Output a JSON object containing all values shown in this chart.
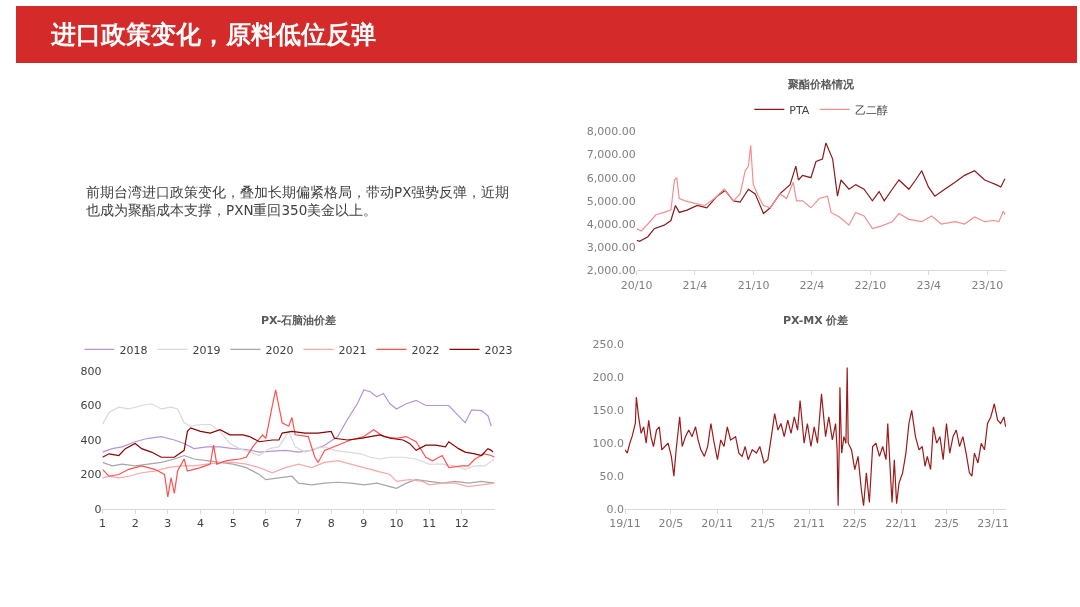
{
  "chart_data": [
    {
      "type": "other",
      "title": "进口政策变化，原料低位反弹",
      "annotations": [
        "前期台湾进口政策变化，叠加长期偏紧格局，带动PX强势反弹，近期也成为聚酯成本支撑，PXN重回350美金以上。"
      ]
    },
    {
      "type": "line",
      "title": "聚酯价格情况",
      "legend": "top",
      "grid": false,
      "xlim": [
        "2020-10-01",
        "2023-11-28"
      ],
      "xticks": [
        {
          "value": "2020-10-01",
          "label": "20/10"
        },
        {
          "value": "2021-04-01",
          "label": "21/4"
        },
        {
          "value": "2021-10-01",
          "label": "21/10"
        },
        {
          "value": "2022-04-01",
          "label": "22/4"
        },
        {
          "value": "2022-10-01",
          "label": "22/10"
        },
        {
          "value": "2023-04-01",
          "label": "23/4"
        },
        {
          "value": "2023-10-01",
          "label": "23/10"
        }
      ],
      "ylim": [
        2000,
        8000
      ],
      "yticks": [
        {
          "value": 2000,
          "label": "2,000.00"
        },
        {
          "value": 3000,
          "label": "3,000.00"
        },
        {
          "value": 4000,
          "label": "4,000.00"
        },
        {
          "value": 5000,
          "label": "5,000.00"
        },
        {
          "value": 6000,
          "label": "6,000.00"
        },
        {
          "value": 7000,
          "label": "7,000.00"
        },
        {
          "value": 8000,
          "label": "8,000.00"
        }
      ],
      "series": [
        {
          "name": "PTA",
          "color": "#8b1a1a",
          "x": [
            "2020-10-01",
            "2020-10-10",
            "2020-11-05",
            "2020-11-25",
            "2020-12-26",
            "2021-01-16",
            "2021-01-30",
            "2021-02-11",
            "2021-03-07",
            "2021-04-08",
            "2021-05-08",
            "2021-06-09",
            "2021-07-04",
            "2021-07-30",
            "2021-08-20",
            "2021-09-15",
            "2021-10-06",
            "2021-11-01",
            "2021-11-22",
            "2021-12-22",
            "2022-01-23",
            "2022-02-10",
            "2022-02-18",
            "2022-03-03",
            "2022-03-29",
            "2022-04-14",
            "2022-05-04",
            "2022-05-15",
            "2022-06-05",
            "2022-06-20",
            "2022-07-01",
            "2022-07-26",
            "2022-08-16",
            "2022-09-11",
            "2022-10-07",
            "2022-10-28",
            "2022-11-13",
            "2022-12-08",
            "2022-12-29",
            "2023-01-29",
            "2023-02-19",
            "2023-03-10",
            "2023-03-31",
            "2023-04-20",
            "2023-05-21",
            "2023-06-22",
            "2023-07-22",
            "2023-08-22",
            "2023-09-23",
            "2023-10-10",
            "2023-10-28",
            "2023-11-12",
            "2023-11-25"
          ],
          "values": [
            3300,
            3250,
            3450,
            3800,
            3950,
            4150,
            4800,
            4500,
            4600,
            4800,
            4700,
            5200,
            5450,
            5000,
            4950,
            5500,
            5300,
            4450,
            4700,
            5300,
            5700,
            6500,
            5900,
            6100,
            6000,
            6700,
            6800,
            7500,
            6800,
            5200,
            5900,
            5500,
            5700,
            5500,
            5000,
            5400,
            5000,
            5500,
            5900,
            5500,
            5900,
            6300,
            5600,
            5200,
            5500,
            5800,
            6100,
            6300,
            5900,
            5800,
            5700,
            5600,
            5950
          ]
        },
        {
          "name": "乙二醇",
          "color": "#f28e8e",
          "x": [
            "2020-10-01",
            "2020-10-15",
            "2020-11-05",
            "2020-11-30",
            "2020-12-26",
            "2021-01-16",
            "2021-01-27",
            "2021-02-03",
            "2021-02-11",
            "2021-03-02",
            "2021-03-28",
            "2021-05-01",
            "2021-06-01",
            "2021-07-01",
            "2021-07-30",
            "2021-08-20",
            "2021-09-05",
            "2021-09-15",
            "2021-09-22",
            "2021-09-30",
            "2021-10-16",
            "2021-11-01",
            "2021-11-22",
            "2021-12-22",
            "2022-01-12",
            "2022-02-02",
            "2022-02-12",
            "2022-03-03",
            "2022-03-29",
            "2022-04-24",
            "2022-05-20",
            "2022-05-31",
            "2022-06-26",
            "2022-07-26",
            "2022-08-16",
            "2022-09-11",
            "2022-10-07",
            "2022-11-01",
            "2022-12-08",
            "2022-12-29",
            "2023-01-29",
            "2023-03-10",
            "2023-04-10",
            "2023-05-10",
            "2023-06-22",
            "2023-07-22",
            "2023-08-22",
            "2023-09-23",
            "2023-10-20",
            "2023-11-06",
            "2023-11-20",
            "2023-11-26"
          ],
          "values": [
            3800,
            3700,
            4000,
            4400,
            4500,
            4600,
            5900,
            6000,
            5100,
            5000,
            4900,
            4800,
            5100,
            5500,
            5000,
            5300,
            6300,
            6500,
            7400,
            5700,
            5200,
            4800,
            4700,
            5300,
            5100,
            5800,
            5000,
            5000,
            4700,
            5100,
            5200,
            4500,
            4300,
            3950,
            4500,
            4350,
            3800,
            3900,
            4100,
            4450,
            4200,
            4100,
            4350,
            4000,
            4100,
            4000,
            4300,
            4100,
            4150,
            4100,
            4550,
            4400
          ]
        }
      ]
    },
    {
      "type": "line",
      "title": "PX-石脑油价差",
      "legend": "top",
      "grid": false,
      "xlim": [
        1,
        13
      ],
      "xticks": [
        1,
        2,
        3,
        4,
        5,
        6,
        7,
        8,
        9,
        10,
        11,
        12
      ],
      "ylim": [
        0,
        800
      ],
      "yticks": [
        0,
        200,
        400,
        600,
        800
      ],
      "series": [
        {
          "name": "2018",
          "color": "#b594d8",
          "x": [
            1.0,
            1.3,
            1.6,
            2.0,
            2.4,
            2.8,
            3.2,
            3.5,
            3.8,
            4.2,
            4.6,
            5.0,
            5.4,
            5.8,
            6.2,
            6.6,
            7.0,
            7.4,
            7.8,
            8.2,
            8.5,
            8.8,
            9.0,
            9.2,
            9.4,
            9.6,
            9.8,
            10.0,
            10.3,
            10.6,
            10.9,
            11.2,
            11.6,
            11.9,
            12.1,
            12.3,
            12.6,
            12.8,
            12.9
          ],
          "values": [
            330,
            350,
            360,
            390,
            410,
            420,
            400,
            380,
            350,
            360,
            360,
            350,
            345,
            330,
            335,
            340,
            330,
            340,
            370,
            420,
            520,
            610,
            690,
            680,
            650,
            670,
            610,
            580,
            610,
            630,
            600,
            600,
            600,
            540,
            500,
            575,
            570,
            540,
            480
          ]
        },
        {
          "name": "2019",
          "color": "#d9d9d9",
          "x": [
            1.0,
            1.2,
            1.5,
            1.8,
            2.2,
            2.5,
            2.8,
            3.1,
            3.3,
            3.5,
            3.7,
            4.0,
            4.3,
            4.6,
            4.9,
            5.2,
            5.5,
            5.8,
            6.1,
            6.4,
            6.7,
            6.9,
            7.2,
            7.5,
            7.8,
            8.1,
            8.5,
            8.9,
            9.2,
            9.5,
            9.8,
            10.2,
            10.6,
            11.0,
            11.4,
            11.8,
            12.1,
            12.4,
            12.7,
            13.0
          ],
          "values": [
            490,
            560,
            590,
            580,
            600,
            610,
            580,
            590,
            580,
            500,
            480,
            490,
            490,
            450,
            380,
            350,
            330,
            310,
            350,
            360,
            450,
            360,
            330,
            350,
            360,
            340,
            330,
            320,
            300,
            290,
            300,
            300,
            290,
            260,
            260,
            250,
            230,
            250,
            250,
            290
          ]
        },
        {
          "name": "2020",
          "color": "#a6a6a6",
          "x": [
            1.0,
            1.3,
            1.6,
            2.0,
            2.4,
            2.8,
            3.2,
            3.5,
            3.8,
            4.2,
            4.6,
            5.0,
            5.4,
            5.8,
            6.0,
            6.4,
            6.8,
            7.0,
            7.4,
            7.8,
            8.2,
            8.6,
            9.0,
            9.4,
            9.8,
            10.0,
            10.3,
            10.6,
            11.0,
            11.4,
            11.8,
            12.2,
            12.6,
            13.0
          ],
          "values": [
            270,
            250,
            260,
            250,
            260,
            270,
            290,
            310,
            290,
            280,
            270,
            260,
            240,
            200,
            170,
            180,
            190,
            150,
            140,
            150,
            155,
            150,
            140,
            150,
            130,
            120,
            150,
            170,
            160,
            150,
            160,
            150,
            160,
            150
          ]
        },
        {
          "name": "2021",
          "color": "#f7a8a8",
          "x": [
            1.0,
            1.2,
            1.5,
            1.8,
            2.2,
            2.6,
            3.0,
            3.4,
            3.8,
            4.2,
            4.6,
            5.0,
            5.4,
            5.8,
            6.2,
            6.6,
            7.0,
            7.4,
            7.8,
            8.2,
            8.6,
            9.0,
            9.4,
            9.8,
            10.0,
            10.4,
            10.8,
            11.0,
            11.4,
            11.8,
            12.2,
            12.6,
            13.0
          ],
          "values": [
            180,
            190,
            180,
            190,
            210,
            220,
            240,
            250,
            250,
            260,
            270,
            270,
            260,
            240,
            210,
            240,
            260,
            240,
            270,
            280,
            260,
            240,
            220,
            200,
            160,
            170,
            160,
            140,
            150,
            150,
            130,
            140,
            150
          ]
        },
        {
          "name": "2022",
          "color": "#ff5050",
          "x": [
            1.0,
            1.2,
            1.5,
            1.8,
            2.2,
            2.6,
            2.9,
            3.0,
            3.1,
            3.2,
            3.3,
            3.5,
            3.6,
            4.0,
            4.3,
            4.4,
            4.5,
            4.8,
            5.2,
            5.4,
            5.6,
            5.9,
            6.0,
            6.2,
            6.3,
            6.5,
            6.7,
            6.8,
            6.9,
            7.3,
            7.5,
            7.6,
            7.8,
            8.2,
            8.6,
            9.0,
            9.3,
            9.6,
            10.0,
            10.3,
            10.6,
            10.9,
            11.1,
            11.4,
            11.6,
            12.0,
            12.2,
            12.4,
            12.7,
            12.9,
            13.0
          ],
          "values": [
            230,
            190,
            200,
            230,
            250,
            230,
            200,
            70,
            180,
            90,
            220,
            290,
            220,
            240,
            260,
            370,
            260,
            280,
            290,
            300,
            360,
            430,
            410,
            600,
            690,
            500,
            480,
            530,
            430,
            420,
            300,
            270,
            340,
            370,
            400,
            420,
            460,
            420,
            410,
            420,
            390,
            300,
            280,
            310,
            240,
            250,
            250,
            290,
            320,
            310,
            300
          ]
        },
        {
          "name": "2023",
          "color": "#8b0000",
          "x": [
            1.0,
            1.2,
            1.5,
            1.7,
            2.0,
            2.2,
            2.5,
            2.8,
            3.2,
            3.5,
            3.6,
            3.7,
            4.0,
            4.3,
            4.6,
            4.9,
            5.3,
            5.5,
            5.8,
            6.2,
            6.4,
            6.5,
            6.8,
            7.2,
            7.6,
            8.0,
            8.1,
            8.5,
            8.9,
            9.2,
            9.5,
            9.8,
            10.2,
            10.4,
            10.6,
            10.9,
            11.2,
            11.5,
            11.6,
            11.9,
            12.1,
            12.4,
            12.6,
            12.8,
            12.9,
            12.95
          ],
          "values": [
            300,
            320,
            310,
            350,
            380,
            350,
            330,
            300,
            300,
            340,
            450,
            470,
            450,
            440,
            460,
            430,
            430,
            420,
            390,
            400,
            400,
            440,
            450,
            440,
            440,
            450,
            410,
            400,
            410,
            420,
            430,
            410,
            400,
            380,
            340,
            370,
            370,
            360,
            390,
            350,
            330,
            320,
            310,
            350,
            340,
            330
          ]
        }
      ]
    },
    {
      "type": "line",
      "title": "PX-MX 价差",
      "grid": false,
      "xlim": [
        "2019-11-01",
        "2023-12-22"
      ],
      "xticks": [
        {
          "value": "2019-11-01",
          "label": "19/11"
        },
        {
          "value": "2020-05-01",
          "label": "20/5"
        },
        {
          "value": "2020-11-01",
          "label": "20/11"
        },
        {
          "value": "2021-05-01",
          "label": "21/5"
        },
        {
          "value": "2021-11-01",
          "label": "21/11"
        },
        {
          "value": "2022-05-01",
          "label": "22/5"
        },
        {
          "value": "2022-11-01",
          "label": "22/11"
        },
        {
          "value": "2023-05-01",
          "label": "23/5"
        },
        {
          "value": "2023-11-01",
          "label": "23/11"
        }
      ],
      "ylim": [
        0,
        250
      ],
      "yticks": [
        {
          "value": 0,
          "label": "0.0"
        },
        {
          "value": 50,
          "label": "50.0"
        },
        {
          "value": 100,
          "label": "100.0"
        },
        {
          "value": 150,
          "label": "150.0"
        },
        {
          "value": 200,
          "label": "200.0"
        },
        {
          "value": 250,
          "label": "250.0"
        }
      ],
      "series": [
        {
          "color": "#9b1b1b",
          "x": [
            "2019-11-01",
            "2019-11-10",
            "2019-11-20",
            "2019-11-29",
            "2019-12-12",
            "2019-12-16",
            "2019-12-25",
            "2020-01-04",
            "2020-01-14",
            "2020-01-24",
            "2020-02-03",
            "2020-02-12",
            "2020-02-22",
            "2020-03-05",
            "2020-03-16",
            "2020-03-26",
            "2020-04-07",
            "2020-04-20",
            "2020-05-03",
            "2020-05-13",
            "2020-05-22",
            "2020-06-05",
            "2020-06-15",
            "2020-06-28",
            "2020-07-11",
            "2020-07-24",
            "2020-08-07",
            "2020-08-17",
            "2020-08-28",
            "2020-09-11",
            "2020-09-24",
            "2020-10-07",
            "2020-10-20",
            "2020-11-02",
            "2020-11-15",
            "2020-11-28",
            "2020-12-11",
            "2020-12-24",
            "2021-01-13",
            "2021-01-26",
            "2021-02-08",
            "2021-02-20",
            "2021-03-04",
            "2021-03-20",
            "2021-04-06",
            "2021-04-19",
            "2021-05-06",
            "2021-05-21",
            "2021-06-04",
            "2021-06-17",
            "2021-06-30",
            "2021-07-12",
            "2021-07-25",
            "2021-08-08",
            "2021-08-21",
            "2021-09-03",
            "2021-09-16",
            "2021-09-26",
            "2021-10-12",
            "2021-10-25",
            "2021-11-08",
            "2021-11-21",
            "2021-12-04",
            "2021-12-20",
            "2022-01-05",
            "2022-01-18",
            "2022-02-01",
            "2022-02-14",
            "2022-02-20",
            "2022-02-24",
            "2022-03-01",
            "2022-03-03",
            "2022-03-10",
            "2022-03-19",
            "2022-03-27",
            "2022-04-01",
            "2022-04-05",
            "2022-04-18",
            "2022-05-01",
            "2022-05-14",
            "2022-05-27",
            "2022-06-05",
            "2022-06-16",
            "2022-06-28",
            "2022-07-11",
            "2022-07-24",
            "2022-08-07",
            "2022-08-20",
            "2022-09-02",
            "2022-09-09",
            "2022-09-20",
            "2022-09-26",
            "2022-10-05",
            "2022-10-14",
            "2022-10-24",
            "2022-11-07",
            "2022-11-20",
            "2022-12-02",
            "2022-12-13",
            "2022-12-28",
            "2023-01-11",
            "2023-01-24",
            "2023-02-04",
            "2023-02-13",
            "2023-02-26",
            "2023-03-09",
            "2023-03-22",
            "2023-04-04",
            "2023-04-17",
            "2023-04-30",
            "2023-05-13",
            "2023-05-26",
            "2023-06-08",
            "2023-06-21",
            "2023-07-04",
            "2023-07-17",
            "2023-07-30",
            "2023-08-09",
            "2023-08-19",
            "2023-09-02",
            "2023-09-15",
            "2023-09-28",
            "2023-10-10",
            "2023-10-23",
            "2023-11-06",
            "2023-11-19",
            "2023-12-01",
            "2023-12-14",
            "2023-12-21"
          ],
          "values": [
            90,
            85,
            100,
            110,
            130,
            170,
            140,
            115,
            125,
            100,
            135,
            110,
            95,
            120,
            125,
            90,
            95,
            100,
            80,
            50,
            90,
            140,
            95,
            110,
            120,
            110,
            125,
            105,
            90,
            80,
            95,
            130,
            100,
            75,
            105,
            95,
            125,
            105,
            110,
            85,
            80,
            95,
            75,
            90,
            85,
            95,
            70,
            75,
            110,
            145,
            120,
            130,
            110,
            135,
            115,
            140,
            120,
            165,
            100,
            130,
            95,
            125,
            100,
            175,
            110,
            140,
            105,
            130,
            90,
            5,
            110,
            185,
            85,
            110,
            100,
            215,
            100,
            90,
            60,
            80,
            30,
            5,
            55,
            10,
            95,
            100,
            80,
            95,
            75,
            130,
            50,
            10,
            75,
            8,
            40,
            55,
            85,
            130,
            150,
            110,
            90,
            95,
            65,
            80,
            60,
            125,
            100,
            110,
            75,
            130,
            85,
            110,
            120,
            95,
            110,
            85,
            55,
            50,
            85,
            70,
            100,
            90,
            130,
            140,
            160,
            135,
            130,
            140,
            125
          ]
        }
      ]
    }
  ]
}
